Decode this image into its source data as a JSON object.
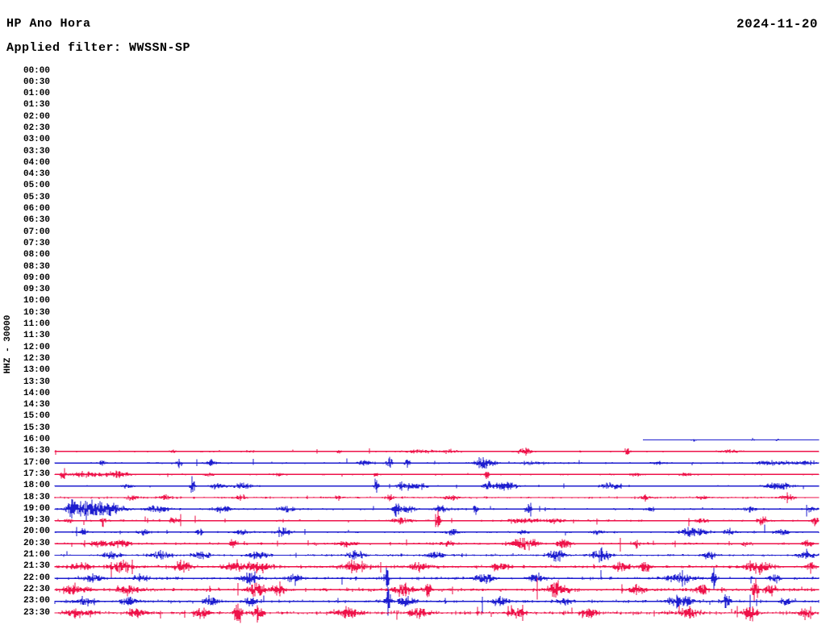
{
  "header": {
    "station_title": "HP Ano Hora",
    "filter_line": "Applied filter: WWSSN-SP",
    "date": "2024-11-20"
  },
  "colors": {
    "trace_red": "#ee1249",
    "trace_blue": "#1e1ecf",
    "text": "#000000",
    "background": "#ffffff"
  },
  "chart_data": {
    "type": "line",
    "subtype": "helicorder-dayplot",
    "title": "HP Ano Hora",
    "filter": "WWSSN-SP",
    "date": "2024-11-20",
    "scale_label": "HHZ - 30000",
    "row_interval_minutes": 30,
    "legend_position": "none",
    "grid": false,
    "time_labels": [
      "00:00",
      "00:30",
      "01:00",
      "01:30",
      "02:00",
      "02:30",
      "03:00",
      "03:30",
      "04:00",
      "04:30",
      "05:00",
      "05:30",
      "06:00",
      "06:30",
      "07:00",
      "07:30",
      "08:00",
      "08:30",
      "09:00",
      "09:30",
      "10:00",
      "10:30",
      "11:00",
      "11:30",
      "12:00",
      "12:30",
      "13:00",
      "13:30",
      "14:00",
      "14:30",
      "15:00",
      "15:30",
      "16:00",
      "16:30",
      "17:00",
      "17:30",
      "18:00",
      "18:30",
      "19:00",
      "19:30",
      "20:00",
      "20:30",
      "21:00",
      "21:30",
      "22:00",
      "22:30",
      "23:00",
      "23:30"
    ],
    "first_data_row": "16:00",
    "first_row_data_start_fraction": 0.77,
    "rows": [
      {
        "time": "16:00",
        "color": "blue",
        "start": 0.77,
        "noise": 0.35,
        "bursts": [
          [
            0.836,
            1.8,
            0.004
          ],
          [
            0.915,
            1.2,
            0.006
          ],
          [
            0.945,
            1.2,
            0.004
          ]
        ]
      },
      {
        "time": "16:30",
        "color": "red",
        "start": 0,
        "noise": 0.7,
        "bursts": [
          [
            0.155,
            2,
            0.01
          ],
          [
            0.256,
            2,
            0.008
          ],
          [
            0.372,
            3,
            0.004
          ],
          [
            0.477,
            2.5,
            0.03
          ],
          [
            0.52,
            3,
            0.012
          ],
          [
            0.615,
            5,
            0.012
          ],
          [
            0.749,
            6,
            0.004
          ],
          [
            0.884,
            2.5,
            0.02
          ]
        ]
      },
      {
        "time": "17:00",
        "color": "blue",
        "start": 0,
        "noise": 0.9,
        "bursts": [
          [
            0.063,
            6,
            0.004
          ],
          [
            0.163,
            7,
            0.004
          ],
          [
            0.205,
            5,
            0.01
          ],
          [
            0.406,
            4,
            0.012
          ],
          [
            0.438,
            11,
            0.004
          ],
          [
            0.461,
            11,
            0.004
          ],
          [
            0.562,
            8,
            0.014
          ],
          [
            0.625,
            3,
            0.02
          ],
          [
            0.789,
            3,
            0.008
          ],
          [
            0.942,
            3.5,
            0.03
          ],
          [
            0.984,
            3,
            0.01
          ]
        ]
      },
      {
        "time": "17:30",
        "color": "red",
        "start": 0,
        "noise": 0.8,
        "bursts": [
          [
            0.011,
            9,
            0.004
          ],
          [
            0.039,
            4,
            0.025
          ],
          [
            0.081,
            5,
            0.02
          ],
          [
            0.203,
            3,
            0.008
          ],
          [
            0.293,
            2.5,
            0.006
          ],
          [
            0.419,
            3,
            0.005
          ],
          [
            0.566,
            7,
            0.004
          ],
          [
            0.762,
            3,
            0.012
          ],
          [
            0.826,
            3,
            0.008
          ]
        ]
      },
      {
        "time": "18:00",
        "color": "blue",
        "start": 0,
        "noise": 0.7,
        "bursts": [
          [
            0.097,
            3,
            0.01
          ],
          [
            0.18,
            12,
            0.004
          ],
          [
            0.213,
            5,
            0.012
          ],
          [
            0.245,
            4,
            0.015
          ],
          [
            0.421,
            12,
            0.004
          ],
          [
            0.456,
            6,
            0.012
          ],
          [
            0.477,
            6,
            0.012
          ],
          [
            0.566,
            10,
            0.005
          ],
          [
            0.59,
            7,
            0.018
          ],
          [
            0.726,
            5,
            0.015
          ],
          [
            0.947,
            7,
            0.02
          ]
        ]
      },
      {
        "time": "18:30",
        "color": "red",
        "start": 0,
        "noise": 1.1,
        "bursts": [
          [
            0.102,
            5,
            0.008
          ],
          [
            0.145,
            4,
            0.012
          ],
          [
            0.242,
            4,
            0.008
          ],
          [
            0.372,
            3,
            0.01
          ],
          [
            0.438,
            4,
            0.008
          ],
          [
            0.52,
            3,
            0.015
          ],
          [
            0.773,
            4,
            0.008
          ],
          [
            0.847,
            3,
            0.01
          ],
          [
            0.958,
            4,
            0.012
          ]
        ]
      },
      {
        "time": "19:00",
        "color": "blue",
        "start": 0,
        "noise": 1.1,
        "bursts": [
          [
            0.021,
            9,
            0.008
          ],
          [
            0.039,
            13,
            0.02
          ],
          [
            0.071,
            9,
            0.025
          ],
          [
            0.134,
            5,
            0.02
          ],
          [
            0.219,
            6,
            0.012
          ],
          [
            0.303,
            4,
            0.015
          ],
          [
            0.446,
            12,
            0.004
          ],
          [
            0.461,
            6,
            0.015
          ],
          [
            0.504,
            5,
            0.012
          ],
          [
            0.551,
            7,
            0.004
          ],
          [
            0.62,
            6,
            0.005
          ],
          [
            0.778,
            3.5,
            0.008
          ],
          [
            0.91,
            4,
            0.008
          ],
          [
            0.99,
            4,
            0.006
          ]
        ]
      },
      {
        "time": "19:30",
        "color": "red",
        "start": 0,
        "noise": 0.95,
        "bursts": [
          [
            0.018,
            5,
            0.006
          ],
          [
            0.063,
            9,
            0.004
          ],
          [
            0.155,
            4,
            0.008
          ],
          [
            0.453,
            5,
            0.015
          ],
          [
            0.502,
            17,
            0.0035
          ],
          [
            0.615,
            5,
            0.022
          ],
          [
            0.657,
            4,
            0.012
          ],
          [
            0.847,
            3,
            0.01
          ],
          [
            0.926,
            6,
            0.008
          ],
          [
            0.995,
            7,
            0.005
          ]
        ]
      },
      {
        "time": "20:00",
        "color": "blue",
        "start": 0,
        "noise": 0.95,
        "bursts": [
          [
            0.037,
            4,
            0.008
          ],
          [
            0.115,
            5,
            0.008
          ],
          [
            0.189,
            5,
            0.006
          ],
          [
            0.245,
            4,
            0.01
          ],
          [
            0.298,
            6,
            0.012
          ],
          [
            0.52,
            4,
            0.012
          ],
          [
            0.615,
            4,
            0.01
          ],
          [
            0.71,
            4,
            0.008
          ],
          [
            0.836,
            7,
            0.02
          ],
          [
            0.884,
            6,
            0.01
          ],
          [
            0.95,
            5,
            0.012
          ]
        ]
      },
      {
        "time": "20:30",
        "color": "red",
        "start": 0,
        "noise": 1.25,
        "bursts": [
          [
            0.06,
            5,
            0.015
          ],
          [
            0.087,
            6,
            0.015
          ],
          [
            0.234,
            8,
            0.005
          ],
          [
            0.382,
            4,
            0.015
          ],
          [
            0.514,
            5,
            0.01
          ],
          [
            0.615,
            9,
            0.02
          ],
          [
            0.667,
            7,
            0.012
          ],
          [
            0.762,
            6,
            0.005
          ],
          [
            0.905,
            4,
            0.006
          ],
          [
            0.984,
            5,
            0.008
          ]
        ]
      },
      {
        "time": "21:00",
        "color": "blue",
        "start": 0,
        "noise": 1.35,
        "bursts": [
          [
            0.076,
            5,
            0.012
          ],
          [
            0.139,
            6,
            0.015
          ],
          [
            0.192,
            5,
            0.012
          ],
          [
            0.266,
            6,
            0.015
          ],
          [
            0.393,
            7,
            0.015
          ],
          [
            0.498,
            6,
            0.012
          ],
          [
            0.657,
            10,
            0.012
          ],
          [
            0.715,
            9,
            0.015
          ],
          [
            0.857,
            5,
            0.01
          ],
          [
            0.984,
            6,
            0.015
          ]
        ]
      },
      {
        "time": "21:30",
        "color": "red",
        "start": 0,
        "noise": 1.7,
        "bursts": [
          [
            0.034,
            6,
            0.02
          ],
          [
            0.087,
            8,
            0.015
          ],
          [
            0.166,
            10,
            0.012
          ],
          [
            0.234,
            9,
            0.015
          ],
          [
            0.266,
            8,
            0.02
          ],
          [
            0.393,
            9,
            0.02
          ],
          [
            0.477,
            7,
            0.015
          ],
          [
            0.583,
            6,
            0.012
          ],
          [
            0.741,
            10,
            0.01
          ],
          [
            0.773,
            8,
            0.008
          ],
          [
            0.921,
            10,
            0.02
          ],
          [
            0.99,
            7,
            0.008
          ]
        ]
      },
      {
        "time": "22:00",
        "color": "blue",
        "start": 0,
        "noise": 1.45,
        "bursts": [
          [
            0.05,
            6,
            0.015
          ],
          [
            0.113,
            6,
            0.012
          ],
          [
            0.256,
            9,
            0.015
          ],
          [
            0.314,
            8,
            0.01
          ],
          [
            0.435,
            18,
            0.004
          ],
          [
            0.562,
            8,
            0.015
          ],
          [
            0.63,
            6,
            0.012
          ],
          [
            0.82,
            8,
            0.02
          ],
          [
            0.863,
            14,
            0.004
          ],
          [
            0.942,
            6,
            0.01
          ]
        ]
      },
      {
        "time": "22:30",
        "color": "red",
        "start": 0,
        "noise": 1.9,
        "bursts": [
          [
            0.029,
            7,
            0.02
          ],
          [
            0.097,
            7,
            0.015
          ],
          [
            0.266,
            10,
            0.015
          ],
          [
            0.293,
            12,
            0.008
          ],
          [
            0.456,
            9,
            0.015
          ],
          [
            0.488,
            16,
            0.004
          ],
          [
            0.657,
            11,
            0.015
          ],
          [
            0.762,
            8,
            0.012
          ],
          [
            0.847,
            8,
            0.01
          ],
          [
            0.916,
            20,
            0.005
          ],
          [
            0.937,
            12,
            0.008
          ]
        ]
      },
      {
        "time": "23:00",
        "color": "blue",
        "start": 0,
        "noise": 1.55,
        "bursts": [
          [
            0.039,
            6,
            0.015
          ],
          [
            0.097,
            7,
            0.012
          ],
          [
            0.203,
            7,
            0.01
          ],
          [
            0.256,
            7,
            0.01
          ],
          [
            0.437,
            24,
            0.004
          ],
          [
            0.461,
            9,
            0.012
          ],
          [
            0.583,
            7,
            0.012
          ],
          [
            0.667,
            6,
            0.012
          ],
          [
            0.82,
            9,
            0.02
          ],
          [
            0.879,
            7,
            0.008
          ],
          [
            0.958,
            6,
            0.01
          ]
        ]
      },
      {
        "time": "23:30",
        "color": "red",
        "start": 0,
        "noise": 2.0,
        "bursts": [
          [
            0.034,
            6,
            0.02
          ],
          [
            0.108,
            6,
            0.015
          ],
          [
            0.192,
            7,
            0.012
          ],
          [
            0.24,
            22,
            0.006
          ],
          [
            0.266,
            12,
            0.008
          ],
          [
            0.382,
            8,
            0.02
          ],
          [
            0.477,
            7,
            0.015
          ],
          [
            0.604,
            7,
            0.012
          ],
          [
            0.699,
            7,
            0.012
          ],
          [
            0.831,
            8,
            0.015
          ],
          [
            0.91,
            9,
            0.012
          ],
          [
            0.984,
            9,
            0.01
          ]
        ]
      }
    ]
  }
}
